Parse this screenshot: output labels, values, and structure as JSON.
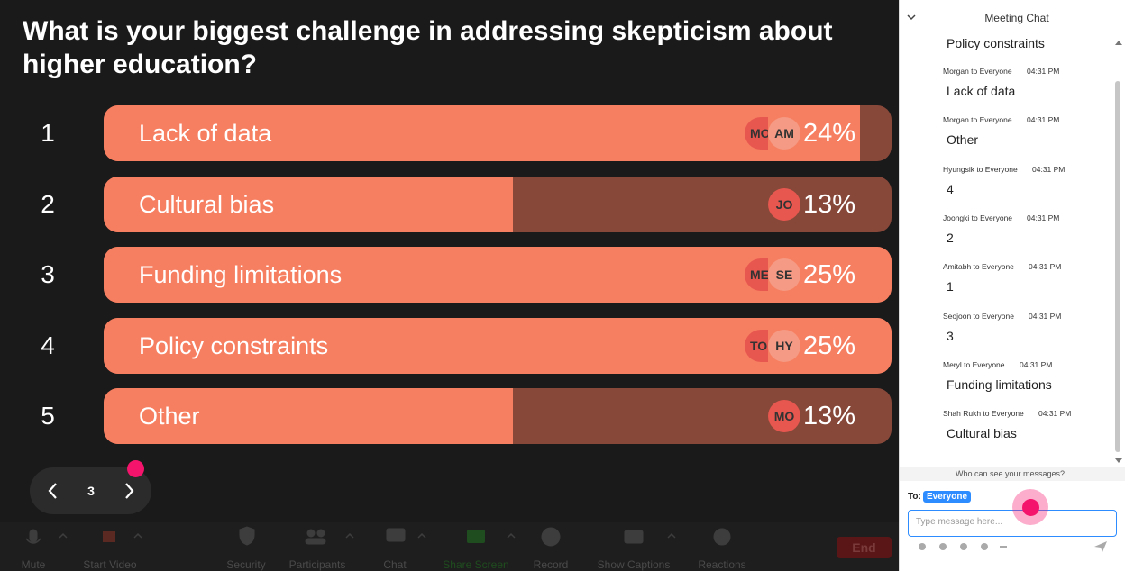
{
  "poll": {
    "title": "What is your biggest challenge in addressing skepticism about higher education?",
    "options": [
      {
        "number": "1",
        "label": "Lack of data",
        "percent": {
          "value": 24,
          "label": "24%"
        },
        "avatars": [
          "MO",
          "AM"
        ]
      },
      {
        "number": "2",
        "label": "Cultural bias",
        "percent": {
          "value": 13,
          "label": "13%"
        },
        "avatars": [
          "JO"
        ]
      },
      {
        "number": "3",
        "label": "Funding limitations",
        "percent": {
          "value": 25,
          "label": "25%"
        },
        "avatars": [
          "ME",
          "SE"
        ]
      },
      {
        "number": "4",
        "label": "Policy constraints",
        "percent": {
          "value": 25,
          "label": "25%"
        },
        "avatars": [
          "TO",
          "HY"
        ]
      },
      {
        "number": "5",
        "label": "Other",
        "percent": {
          "value": 13,
          "label": "13%"
        },
        "avatars": [
          "MO"
        ]
      }
    ]
  },
  "pager": {
    "page": "3"
  },
  "toolbar": {
    "buttons": [
      "Mute",
      "Start Video",
      "Security",
      "Participants",
      "Chat",
      "Share Screen",
      "Record",
      "Show Captions",
      "Reactions"
    ],
    "end": "End"
  },
  "chat": {
    "title": "Meeting Chat",
    "first_message": "Policy constraints",
    "messages": [
      {
        "sender": "Morgan to Everyone",
        "time": "04:31 PM",
        "text": "Lack of data"
      },
      {
        "sender": "Morgan to Everyone",
        "time": "04:31 PM",
        "text": "Other"
      },
      {
        "sender": "Hyungsik to Everyone",
        "time": "04:31 PM",
        "text": "4"
      },
      {
        "sender": "Joongki to Everyone",
        "time": "04:31 PM",
        "text": "2"
      },
      {
        "sender": "Amitabh to Everyone",
        "time": "04:31 PM",
        "text": "1"
      },
      {
        "sender": "Seojoon to Everyone",
        "time": "04:31 PM",
        "text": "3"
      },
      {
        "sender": "Meryl to Everyone",
        "time": "04:31 PM",
        "text": "Funding limitations"
      },
      {
        "sender": "Shah Rukh to Everyone",
        "time": "04:31 PM",
        "text": "Cultural bias"
      }
    ],
    "privacy_note": "Who can see your messages?",
    "to_label": "To:",
    "recipient": "Everyone",
    "placeholder": "Type message here..."
  }
}
